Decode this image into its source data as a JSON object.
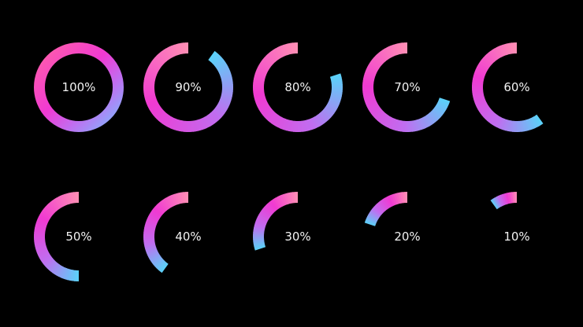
{
  "palette": {
    "background": "#000000",
    "pink": "#ff8fb4",
    "magenta": "#f03ad2",
    "violet": "#c06ef0",
    "cyan": "#5ad2f8",
    "label_color": "#f2f2f2"
  },
  "rings": [
    {
      "value": 100,
      "label": "100%"
    },
    {
      "value": 90,
      "label": "90%"
    },
    {
      "value": 80,
      "label": "80%"
    },
    {
      "value": 70,
      "label": "70%"
    },
    {
      "value": 60,
      "label": "60%"
    },
    {
      "value": 50,
      "label": "50%"
    },
    {
      "value": 40,
      "label": "40%"
    },
    {
      "value": 30,
      "label": "30%"
    },
    {
      "value": 20,
      "label": "20%"
    },
    {
      "value": 10,
      "label": "10%"
    }
  ]
}
